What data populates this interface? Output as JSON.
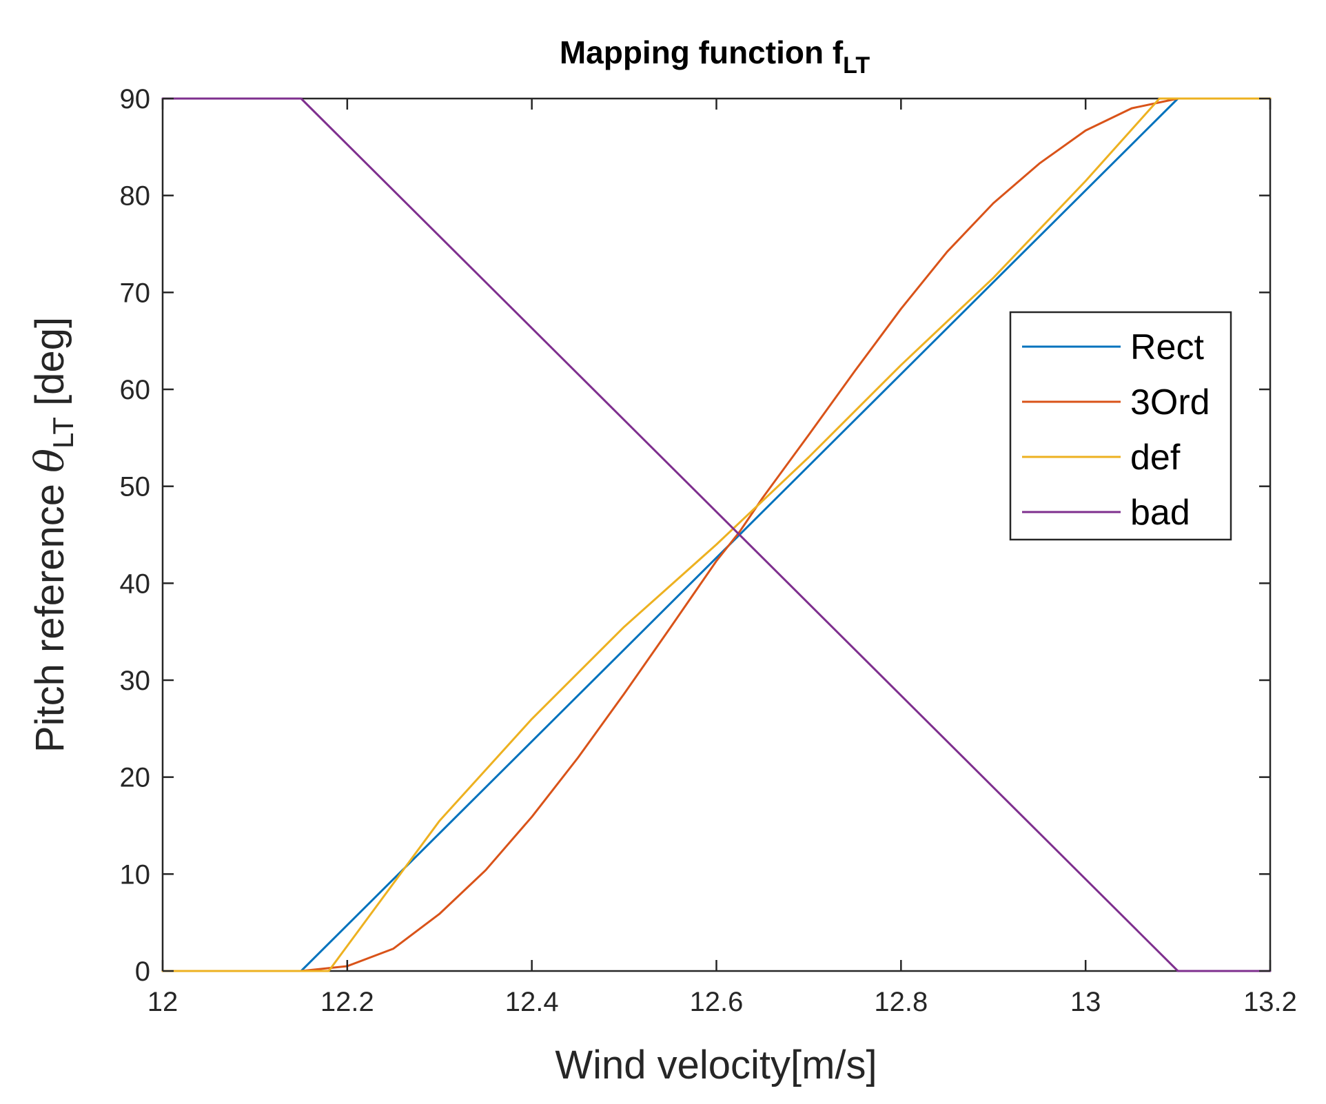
{
  "chart_data": {
    "type": "line",
    "title": "Mapping function f",
    "title_subscript": "LT",
    "xlabel": "Wind velocity[m/s]",
    "ylabel_prefix": "Pitch reference ",
    "ylabel_symbol": "θ",
    "ylabel_subscript": "LT",
    "ylabel_suffix": " [deg]",
    "xlim": [
      12,
      13.2
    ],
    "ylim": [
      0,
      90
    ],
    "xticks": [
      12,
      12.2,
      12.4,
      12.6,
      12.8,
      13,
      13.2
    ],
    "xtick_labels": [
      "12",
      "12.2",
      "12.4",
      "12.6",
      "12.8",
      "13",
      "13.2"
    ],
    "yticks": [
      0,
      10,
      20,
      30,
      40,
      50,
      60,
      70,
      80,
      90
    ],
    "ytick_labels": [
      "0",
      "10",
      "20",
      "30",
      "40",
      "50",
      "60",
      "70",
      "80",
      "90"
    ],
    "grid": false,
    "legend_position": "right",
    "series": [
      {
        "name": "Rect",
        "color": "#0072BD",
        "x": [
          12.0,
          12.15,
          13.1,
          13.2
        ],
        "y": [
          0,
          0,
          90,
          90
        ]
      },
      {
        "name": "3Ord",
        "color": "#D95319",
        "x": [
          12.0,
          12.15,
          12.2,
          12.25,
          12.3,
          12.35,
          12.4,
          12.45,
          12.5,
          12.55,
          12.6,
          12.625,
          12.65,
          12.7,
          12.75,
          12.8,
          12.85,
          12.9,
          12.95,
          13.0,
          13.05,
          13.1,
          13.2
        ],
        "y": [
          0,
          0,
          0.5,
          2.3,
          5.9,
          10.4,
          15.9,
          22.0,
          28.6,
          35.4,
          42.3,
          45.3,
          48.8,
          55.3,
          61.9,
          68.3,
          74.2,
          79.2,
          83.3,
          86.7,
          89.0,
          90,
          90
        ]
      },
      {
        "name": "def",
        "color": "#EDB120",
        "x": [
          12.0,
          12.18,
          12.3,
          12.4,
          12.5,
          12.6,
          12.7,
          12.8,
          12.9,
          13.0,
          13.08,
          13.2
        ],
        "y": [
          0,
          0,
          15.5,
          26.0,
          35.5,
          44.0,
          53.0,
          62.5,
          71.5,
          81.5,
          90,
          90
        ]
      },
      {
        "name": "bad",
        "color": "#7E2F8E",
        "x": [
          12.0,
          12.15,
          13.1,
          13.2
        ],
        "y": [
          90,
          90,
          0,
          0
        ]
      }
    ]
  }
}
